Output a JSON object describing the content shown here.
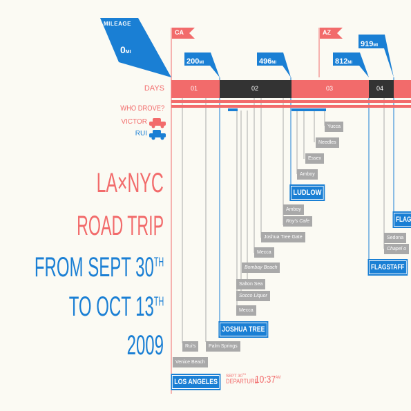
{
  "mileage_header": {
    "label": "MILEAGE",
    "start_value": "0",
    "unit": "MI"
  },
  "colors": {
    "red": "#f26b6b",
    "blue": "#1a7fd4",
    "black": "#333333",
    "gray": "#a9a9a9",
    "background": "#fbfaf3"
  },
  "row_labels": {
    "days": "DAYS",
    "who_drove": "WHO DROVE?",
    "victor": "VICTOR",
    "rui": "RUI"
  },
  "title": {
    "line1": "LA×NYC",
    "line2": "ROAD TRIP",
    "line3": "FROM SEPT 30",
    "line3_sup": "TH",
    "line4": "TO OCT 13",
    "line4_sup": "TH",
    "line5": "2009"
  },
  "state_flags": [
    {
      "label": "CA"
    },
    {
      "label": "AZ"
    }
  ],
  "mileage_flags": [
    {
      "value": "200",
      "unit": "MI"
    },
    {
      "value": "496",
      "unit": "MI"
    },
    {
      "value": "812",
      "unit": "MI"
    },
    {
      "value": "919",
      "unit": "MI"
    }
  ],
  "days": [
    {
      "label": "01"
    },
    {
      "label": "02"
    },
    {
      "label": "03"
    },
    {
      "label": "04"
    }
  ],
  "stops": [
    {
      "label": "Yucca"
    },
    {
      "label": "Needles"
    },
    {
      "label": "Essex"
    },
    {
      "label": "Amboy"
    },
    {
      "label": "Amboy"
    },
    {
      "label": "Roy's Cafe"
    },
    {
      "label": "Joshua Tree Gate"
    },
    {
      "label": "Mecca"
    },
    {
      "label": "Bombay Beach"
    },
    {
      "label": "Salton Sea"
    },
    {
      "label": "Socco Liquor"
    },
    {
      "label": "Mecca"
    },
    {
      "label": "Rui's"
    },
    {
      "label": "Palm Springs"
    },
    {
      "label": "Venice Beach"
    },
    {
      "label": "Sedona"
    },
    {
      "label": "Chapel o"
    }
  ],
  "cities": [
    {
      "label": "LUDLOW"
    },
    {
      "label": "JOSHUA TREE"
    },
    {
      "label": "LOS ANGELES"
    },
    {
      "label": "FLAGSTAFF"
    },
    {
      "label": "FLAGS"
    }
  ],
  "departure": {
    "date": "SEPT 30",
    "date_sup": "TH",
    "label": "DEPARTURE",
    "time": "10:37",
    "ampm": "AM"
  }
}
